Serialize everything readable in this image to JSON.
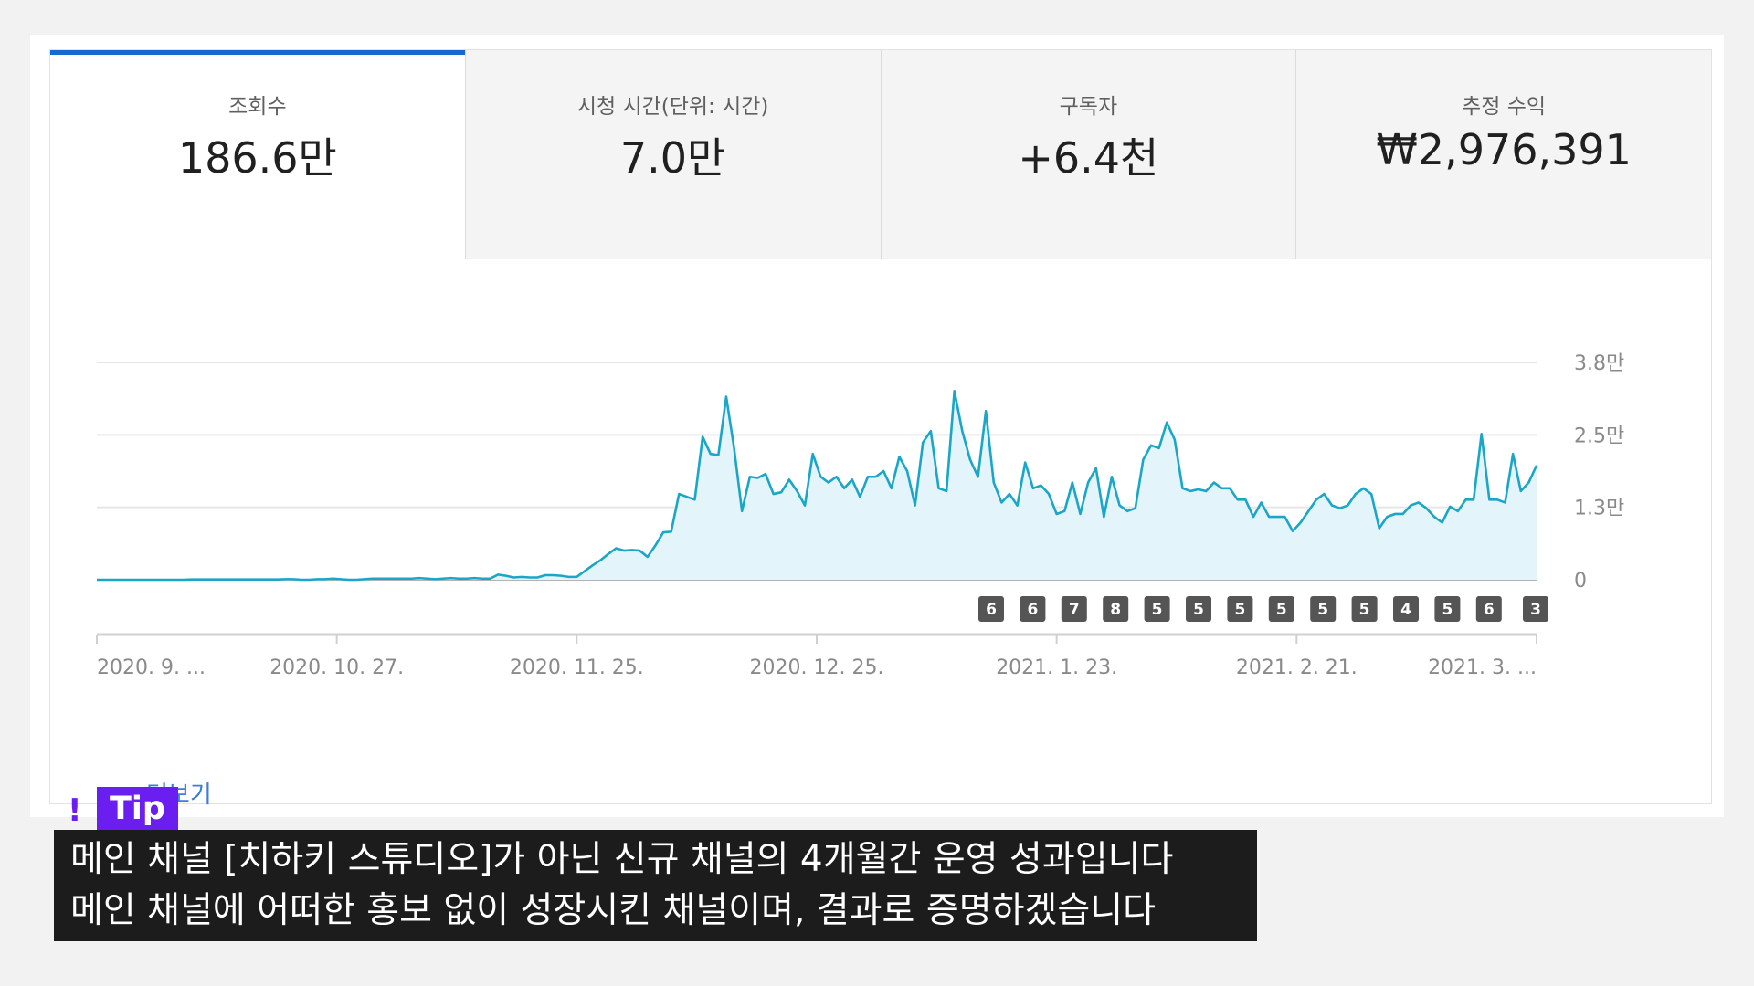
{
  "metrics": [
    {
      "label": "조회수",
      "value": "186.6만",
      "active": true
    },
    {
      "label": "시청 시간(단위: 시간)",
      "value": "7.0만",
      "active": false
    },
    {
      "label": "구독자",
      "value": "+6.4천",
      "active": false
    },
    {
      "label": "추정 수익",
      "value": "₩2,976,391",
      "active": false
    }
  ],
  "more_label": "더보기",
  "tip": {
    "icon": "exclamation-icon",
    "label": "Tip",
    "lines": [
      "메인 채널 [치하키 스튜디오]가 아닌 신규 채널의 4개월간 운영 성과입니다",
      "메인 채널에 어떠한 홍보 없이 성장시킨 채널이며, 결과로 증명하겠습니다"
    ]
  },
  "colors": {
    "accent": "#1967d2",
    "line": "#1ba6c8",
    "area": "#e3f5fa",
    "badge": "#555555",
    "link": "#3f7bd8",
    "tip": "#6a1ef0"
  },
  "chart_data": {
    "type": "area",
    "series": [
      {
        "values": [
          0,
          0,
          0,
          0,
          0,
          0,
          0,
          0,
          0,
          0,
          0,
          0,
          50,
          50,
          50,
          50,
          50,
          50,
          50,
          50,
          50,
          50,
          50,
          50,
          100,
          100,
          0,
          0,
          100,
          100,
          200,
          100,
          0,
          0,
          100,
          200,
          200,
          200,
          200,
          200,
          200,
          300,
          200,
          100,
          200,
          300,
          200,
          200,
          300,
          200,
          200,
          900,
          700,
          400,
          500,
          400,
          400,
          800,
          800,
          700,
          500,
          500,
          1500,
          2500,
          3400,
          4500,
          5500,
          5100,
          5200,
          5100,
          4000,
          6000,
          8300,
          8400,
          15000,
          14500,
          14000,
          25000,
          22000,
          21800,
          32000,
          23000,
          12000,
          18000,
          17800,
          18500,
          15000,
          15300,
          17500,
          15500,
          13000,
          22000,
          18000,
          17000,
          18000,
          16000,
          17500,
          14500,
          18000,
          18000,
          19000,
          16000,
          21500,
          19000,
          13000,
          24000,
          26000,
          16000,
          15500,
          33000,
          26000,
          21000,
          18000,
          29500,
          17000,
          13500,
          15000,
          13000,
          20500,
          16000,
          16500,
          15000,
          11500,
          12000,
          17000,
          11500,
          17000,
          19500,
          11000,
          18000,
          13000,
          12000,
          12500,
          21000,
          23500,
          23000,
          27500,
          24500,
          16000,
          15500,
          15800,
          15500,
          17000,
          16000,
          16000,
          14000,
          14000,
          11000,
          13500,
          11000,
          11000,
          11000,
          8500,
          10000,
          12000,
          14000,
          15000,
          13000,
          12500,
          13000,
          15000,
          16000,
          15000,
          9000,
          11000,
          11500,
          11500,
          13000,
          13500,
          12500,
          11000,
          10000,
          12800,
          12000,
          14000,
          14000,
          25500,
          14000,
          14000,
          13500,
          22000,
          15500,
          17000,
          20000
        ]
      }
    ],
    "ylim": [
      0,
      38000
    ],
    "yticks": [
      "0",
      "1.3만",
      "2.5만",
      "3.8만"
    ],
    "xticks": [
      "2020. 9. ...",
      "2020. 10. 27.",
      "2020. 11. 25.",
      "2020. 12. 25.",
      "2021. 1. 23.",
      "2021. 2. 21.",
      "2021. 3. ..."
    ],
    "badges": [
      "6",
      "6",
      "7",
      "8",
      "5",
      "5",
      "5",
      "5",
      "5",
      "5",
      "4",
      "5",
      "6",
      "3"
    ],
    "grid": true
  }
}
